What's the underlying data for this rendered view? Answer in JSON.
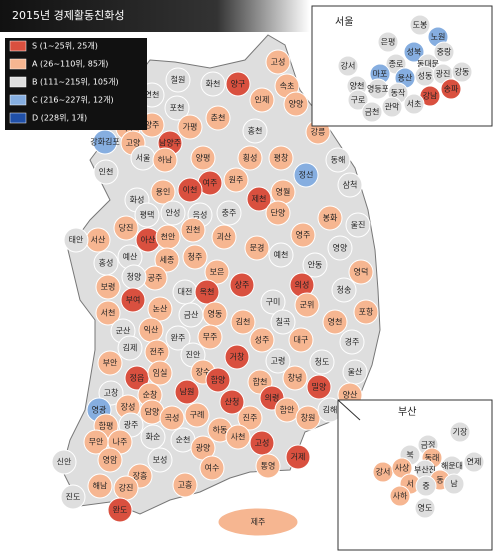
{
  "title": "2015년 경제활동친화성",
  "legend": [
    {
      "label": "S (1~25위, 25개)",
      "color": "#d9503f"
    },
    {
      "label": "A (26~110위, 85개)",
      "color": "#f6b691"
    },
    {
      "label": "B (111~215위, 105개)",
      "color": "#dedede"
    },
    {
      "label": "C (216~227위, 12개)",
      "color": "#86aee0"
    },
    {
      "label": "D (228위, 1개)",
      "color": "#2050a8"
    }
  ],
  "regions": [
    {
      "name": "고성",
      "class": 1
    },
    {
      "name": "철원",
      "class": 2
    },
    {
      "name": "화천",
      "class": 2
    },
    {
      "name": "양구",
      "class": 0
    },
    {
      "name": "인제",
      "class": 1
    },
    {
      "name": "속초",
      "class": 1
    },
    {
      "name": "양양",
      "class": 1
    },
    {
      "name": "연천",
      "class": 2
    },
    {
      "name": "포천",
      "class": 2
    },
    {
      "name": "파주",
      "class": 1
    },
    {
      "name": "양주",
      "class": 1
    },
    {
      "name": "가평",
      "class": 1
    },
    {
      "name": "춘천",
      "class": 1
    },
    {
      "name": "홍천",
      "class": 2
    },
    {
      "name": "강릉",
      "class": 1
    },
    {
      "name": "고양",
      "class": 1
    },
    {
      "name": "강화김포",
      "class": 3
    },
    {
      "name": "남양주",
      "class": 0
    },
    {
      "name": "양평",
      "class": 1
    },
    {
      "name": "횡성",
      "class": 1
    },
    {
      "name": "평창",
      "class": 1
    },
    {
      "name": "정선",
      "class": 3
    },
    {
      "name": "동해",
      "class": 2
    },
    {
      "name": "삼척",
      "class": 2
    },
    {
      "name": "서울",
      "class": 2
    },
    {
      "name": "인천",
      "class": 2
    },
    {
      "name": "하남",
      "class": 1
    },
    {
      "name": "여주",
      "class": 0
    },
    {
      "name": "원주",
      "class": 1
    },
    {
      "name": "이천",
      "class": 0
    },
    {
      "name": "영월",
      "class": 1
    },
    {
      "name": "화성",
      "class": 2
    },
    {
      "name": "용인",
      "class": 1
    },
    {
      "name": "평택",
      "class": 2
    },
    {
      "name": "안성",
      "class": 2
    },
    {
      "name": "음성",
      "class": 2
    },
    {
      "name": "충주",
      "class": 2
    },
    {
      "name": "제천",
      "class": 0
    },
    {
      "name": "단양",
      "class": 1
    },
    {
      "name": "봉화",
      "class": 1
    },
    {
      "name": "울진",
      "class": 2
    },
    {
      "name": "당진",
      "class": 1
    },
    {
      "name": "서산",
      "class": 1
    },
    {
      "name": "태안",
      "class": 2
    },
    {
      "name": "아산",
      "class": 0
    },
    {
      "name": "천안",
      "class": 1
    },
    {
      "name": "진천",
      "class": 1
    },
    {
      "name": "괴산",
      "class": 1
    },
    {
      "name": "영주",
      "class": 1
    },
    {
      "name": "예산",
      "class": 2
    },
    {
      "name": "홍성",
      "class": 2
    },
    {
      "name": "청주",
      "class": 1
    },
    {
      "name": "문경",
      "class": 1
    },
    {
      "name": "예천",
      "class": 2
    },
    {
      "name": "영양",
      "class": 2
    },
    {
      "name": "안동",
      "class": 2
    },
    {
      "name": "세종",
      "class": 1
    },
    {
      "name": "공주",
      "class": 1
    },
    {
      "name": "보은",
      "class": 1
    },
    {
      "name": "상주",
      "class": 0
    },
    {
      "name": "의성",
      "class": 0
    },
    {
      "name": "영덕",
      "class": 1
    },
    {
      "name": "청송",
      "class": 2
    },
    {
      "name": "보령",
      "class": 1
    },
    {
      "name": "청양",
      "class": 2
    },
    {
      "name": "부여",
      "class": 0
    },
    {
      "name": "논산",
      "class": 1
    },
    {
      "name": "대전",
      "class": 2
    },
    {
      "name": "옥천",
      "class": 0
    },
    {
      "name": "영동",
      "class": 1
    },
    {
      "name": "구미",
      "class": 2
    },
    {
      "name": "군위",
      "class": 1
    },
    {
      "name": "포항",
      "class": 1
    },
    {
      "name": "서천",
      "class": 1
    },
    {
      "name": "군산",
      "class": 2
    },
    {
      "name": "익산",
      "class": 1
    },
    {
      "name": "금산",
      "class": 2
    },
    {
      "name": "김천",
      "class": 1
    },
    {
      "name": "칠곡",
      "class": 2
    },
    {
      "name": "영천",
      "class": 1
    },
    {
      "name": "완주",
      "class": 2
    },
    {
      "name": "무주",
      "class": 1
    },
    {
      "name": "성주",
      "class": 1
    },
    {
      "name": "대구",
      "class": 1
    },
    {
      "name": "경주",
      "class": 2
    },
    {
      "name": "김제",
      "class": 2
    },
    {
      "name": "전주",
      "class": 1
    },
    {
      "name": "진안",
      "class": 2
    },
    {
      "name": "고령",
      "class": 2
    },
    {
      "name": "청도",
      "class": 2
    },
    {
      "name": "부안",
      "class": 1
    },
    {
      "name": "정읍",
      "class": 0
    },
    {
      "name": "임실",
      "class": 1
    },
    {
      "name": "장수",
      "class": 1
    },
    {
      "name": "거창",
      "class": 0
    },
    {
      "name": "합천",
      "class": 1
    },
    {
      "name": "창녕",
      "class": 1
    },
    {
      "name": "밀양",
      "class": 0
    },
    {
      "name": "울산",
      "class": 2
    },
    {
      "name": "고창",
      "class": 2
    },
    {
      "name": "순창",
      "class": 1
    },
    {
      "name": "남원",
      "class": 0
    },
    {
      "name": "함양",
      "class": 0
    },
    {
      "name": "산청",
      "class": 0
    },
    {
      "name": "의령",
      "class": 0
    },
    {
      "name": "양산",
      "class": 1
    },
    {
      "name": "영광",
      "class": 3
    },
    {
      "name": "장성",
      "class": 1
    },
    {
      "name": "담양",
      "class": 1
    },
    {
      "name": "곡성",
      "class": 1
    },
    {
      "name": "구례",
      "class": 1
    },
    {
      "name": "하동",
      "class": 1
    },
    {
      "name": "진주",
      "class": 1
    },
    {
      "name": "함안",
      "class": 1
    },
    {
      "name": "창원",
      "class": 1
    },
    {
      "name": "김해",
      "class": 2
    },
    {
      "name": "함평",
      "class": 1
    },
    {
      "name": "광주",
      "class": 2
    },
    {
      "name": "화순",
      "class": 2
    },
    {
      "name": "순천",
      "class": 2
    },
    {
      "name": "광양",
      "class": 1
    },
    {
      "name": "사천",
      "class": 1
    },
    {
      "name": "고성",
      "class": 0
    },
    {
      "name": "통영",
      "class": 1
    },
    {
      "name": "거제",
      "class": 0
    },
    {
      "name": "무안",
      "class": 1
    },
    {
      "name": "나주",
      "class": 1
    },
    {
      "name": "신안",
      "class": 2
    },
    {
      "name": "영암",
      "class": 1
    },
    {
      "name": "보성",
      "class": 2
    },
    {
      "name": "여수",
      "class": 1
    },
    {
      "name": "장흥",
      "class": 1
    },
    {
      "name": "강진",
      "class": 1
    },
    {
      "name": "해남",
      "class": 1
    },
    {
      "name": "고흥",
      "class": 1
    },
    {
      "name": "진도",
      "class": 2
    },
    {
      "name": "완도",
      "class": 0
    },
    {
      "name": "제주",
      "class": 1
    },
    {
      "name": "부산",
      "class": 2
    }
  ],
  "insets": [
    {
      "title": "서울",
      "regions": [
        {
          "name": "도봉",
          "class": 2
        },
        {
          "name": "노원",
          "class": 3
        },
        {
          "name": "은평",
          "class": 2
        },
        {
          "name": "성북",
          "class": 3
        },
        {
          "name": "중랑",
          "class": 2
        },
        {
          "name": "강서",
          "class": 2
        },
        {
          "name": "종로",
          "class": 2
        },
        {
          "name": "동대문",
          "class": 2
        },
        {
          "name": "마포",
          "class": 3
        },
        {
          "name": "용산",
          "class": 3
        },
        {
          "name": "성동",
          "class": 2
        },
        {
          "name": "광진",
          "class": 2
        },
        {
          "name": "강동",
          "class": 2
        },
        {
          "name": "양천",
          "class": 2
        },
        {
          "name": "영등포",
          "class": 2
        },
        {
          "name": "동작",
          "class": 2
        },
        {
          "name": "강남",
          "class": 0
        },
        {
          "name": "송파",
          "class": 0
        },
        {
          "name": "구로",
          "class": 2
        },
        {
          "name": "서초",
          "class": 2
        },
        {
          "name": "관악",
          "class": 2
        },
        {
          "name": "금천",
          "class": 2
        }
      ]
    },
    {
      "title": "부산",
      "regions": [
        {
          "name": "기장",
          "class": 2
        },
        {
          "name": "금정",
          "class": 2
        },
        {
          "name": "북",
          "class": 2
        },
        {
          "name": "동래",
          "class": 1
        },
        {
          "name": "해운대",
          "class": 2
        },
        {
          "name": "연제",
          "class": 2
        },
        {
          "name": "강서",
          "class": 1
        },
        {
          "name": "사상",
          "class": 1
        },
        {
          "name": "부산진",
          "class": 2
        },
        {
          "name": "동",
          "class": 1
        },
        {
          "name": "남",
          "class": 2
        },
        {
          "name": "서",
          "class": 1
        },
        {
          "name": "중",
          "class": 2
        },
        {
          "name": "사하",
          "class": 1
        },
        {
          "name": "영도",
          "class": 2
        }
      ]
    }
  ]
}
